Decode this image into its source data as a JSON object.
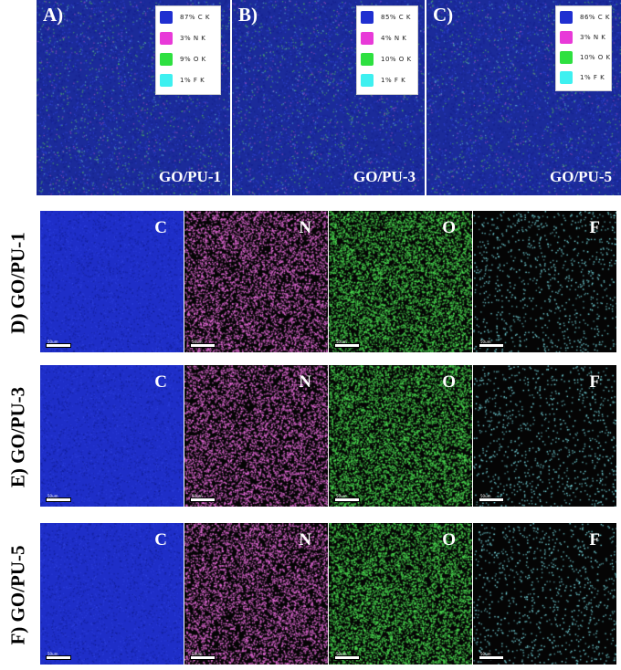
{
  "colors": {
    "C": "#1f2fd0",
    "N": "#e86cdc",
    "O": "#4ce052",
    "F": "#7ee8f0",
    "top_bg": "#1c2a8c"
  },
  "top_panels": [
    {
      "letter": "A)",
      "name": "GO/PU-1",
      "legend": [
        {
          "text": "87% C K",
          "color": "#1f2fd0"
        },
        {
          "text": "3% N K",
          "color": "#e83ad8"
        },
        {
          "text": "9% O K",
          "color": "#2ee040"
        },
        {
          "text": "1% F K",
          "color": "#3ef0f0"
        }
      ]
    },
    {
      "letter": "B)",
      "name": "GO/PU-3",
      "legend": [
        {
          "text": "85% C K",
          "color": "#1f2fd0"
        },
        {
          "text": "4% N K",
          "color": "#e83ad8"
        },
        {
          "text": "10% O K",
          "color": "#2ee040"
        },
        {
          "text": "1% F K",
          "color": "#3ef0f0"
        }
      ]
    },
    {
      "letter": "C)",
      "name": "GO/PU-5",
      "legend": [
        {
          "text": "86% C K",
          "color": "#1f2fd0"
        },
        {
          "text": "3% N K",
          "color": "#e83ad8"
        },
        {
          "text": "10% O K",
          "color": "#2ee040"
        },
        {
          "text": "1% F K",
          "color": "#3ef0f0"
        }
      ]
    }
  ],
  "rows": [
    {
      "label": "D) GO/PU-1",
      "tiles": [
        "C",
        "N",
        "O",
        "F"
      ],
      "scale": "50um"
    },
    {
      "label": "E) GO/PU-3",
      "tiles": [
        "C",
        "N",
        "O",
        "F"
      ],
      "scale": "50um"
    },
    {
      "label": "F) GO/PU-5",
      "tiles": [
        "C",
        "N",
        "O",
        "F"
      ],
      "scale": "50um"
    }
  ]
}
